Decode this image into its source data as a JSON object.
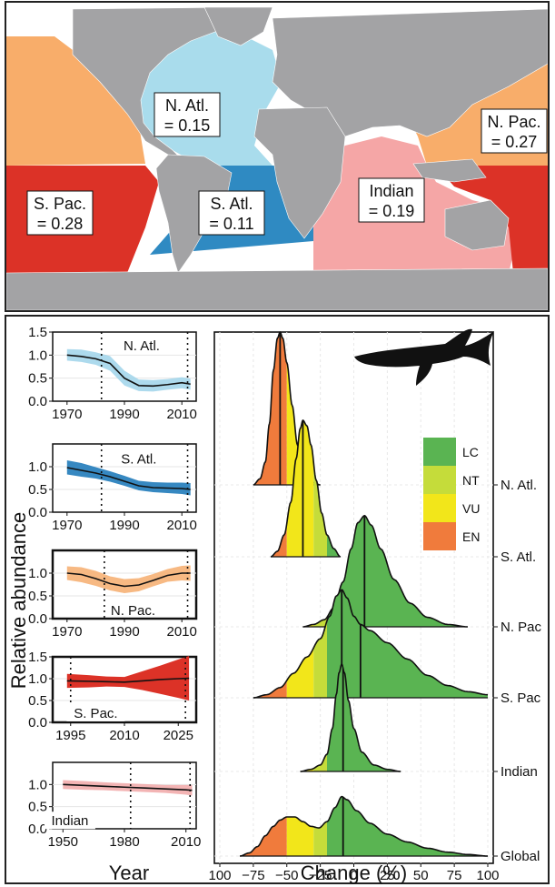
{
  "colors": {
    "land": "#a3a3a5",
    "n_atl": "#a9dcec",
    "s_atl": "#2f8ac2",
    "n_pac": "#f8ad6a",
    "s_pac": "#dc3227",
    "indian": "#f5a6a6",
    "lc": "#5ab452",
    "nt": "#c5dc3a",
    "vu": "#f2e61a",
    "en": "#f07b3c"
  },
  "map": {
    "labels": [
      {
        "id": "n_atl",
        "line1": "N. Atl.",
        "line2": "= 0.15"
      },
      {
        "id": "n_pac",
        "line1": "N. Pac.",
        "line2": "= 0.27"
      },
      {
        "id": "s_pac",
        "line1": "S. Pac.",
        "line2": "= 0.28"
      },
      {
        "id": "s_atl",
        "line1": "S. Atl.",
        "line2": "= 0.11"
      },
      {
        "id": "indian",
        "line1": "Indian",
        "line2": "= 0.19"
      }
    ]
  },
  "chart_data": [
    {
      "type": "line",
      "region": "N. Atl.",
      "xlim": [
        1965,
        2015
      ],
      "ylim": [
        0,
        1.5
      ],
      "xticks": [
        "1970",
        "1990",
        "2010"
      ],
      "yticks": [
        "0.0",
        "0.5",
        "1.0",
        "1.5"
      ],
      "vlines": [
        1982,
        2012
      ],
      "series": [
        {
          "x": [
            1970,
            1975,
            1980,
            1985,
            1990,
            1995,
            2000,
            2005,
            2010,
            2013
          ],
          "y": [
            1.0,
            0.97,
            0.92,
            0.82,
            0.5,
            0.34,
            0.33,
            0.36,
            0.4,
            0.37
          ],
          "lower": [
            0.88,
            0.85,
            0.79,
            0.66,
            0.34,
            0.22,
            0.21,
            0.25,
            0.28,
            0.25
          ],
          "upper": [
            1.13,
            1.12,
            1.06,
            0.98,
            0.66,
            0.47,
            0.46,
            0.48,
            0.52,
            0.49
          ]
        }
      ]
    },
    {
      "type": "line",
      "region": "S. Atl.",
      "xlim": [
        1965,
        2015
      ],
      "ylim": [
        0,
        1.5
      ],
      "xticks": [
        "1970",
        "1990",
        "2010"
      ],
      "yticks": [
        "0.0",
        "0.5",
        "1.0"
      ],
      "vlines": [
        1982,
        2012
      ],
      "series": [
        {
          "x": [
            1970,
            1975,
            1980,
            1985,
            1990,
            1995,
            2000,
            2005,
            2010,
            2013
          ],
          "y": [
            0.98,
            0.92,
            0.86,
            0.78,
            0.68,
            0.58,
            0.54,
            0.53,
            0.52,
            0.5
          ],
          "lower": [
            0.83,
            0.78,
            0.74,
            0.67,
            0.58,
            0.48,
            0.44,
            0.42,
            0.4,
            0.37
          ],
          "upper": [
            1.14,
            1.08,
            0.99,
            0.9,
            0.8,
            0.69,
            0.66,
            0.65,
            0.65,
            0.64
          ]
        }
      ]
    },
    {
      "type": "line",
      "region": "N. Pac.",
      "xlim": [
        1965,
        2015
      ],
      "ylim": [
        0,
        1.5
      ],
      "xticks": [
        "1970",
        "1990",
        "2010"
      ],
      "yticks": [
        "0.0",
        "0.5",
        "1.0"
      ],
      "vlines": [
        1983,
        2012
      ],
      "series": [
        {
          "x": [
            1970,
            1975,
            1980,
            1985,
            1990,
            1995,
            2000,
            2005,
            2010,
            2013
          ],
          "y": [
            1.0,
            0.97,
            0.88,
            0.77,
            0.71,
            0.74,
            0.84,
            0.95,
            1.0,
            1.0
          ],
          "lower": [
            0.85,
            0.8,
            0.72,
            0.62,
            0.56,
            0.6,
            0.71,
            0.81,
            0.84,
            0.83
          ],
          "upper": [
            1.15,
            1.13,
            1.05,
            0.93,
            0.87,
            0.89,
            0.98,
            1.09,
            1.16,
            1.17
          ]
        }
      ]
    },
    {
      "type": "line",
      "region": "S. Pac.",
      "xlim": [
        1990,
        2030
      ],
      "ylim": [
        0,
        1.5
      ],
      "xticks": [
        "1995",
        "2010",
        "2025"
      ],
      "yticks": [
        "0.0",
        "0.5",
        "1.0",
        "1.5"
      ],
      "vlines": [
        1995,
        2027
      ],
      "series": [
        {
          "x": [
            1994,
            2000,
            2005,
            2010,
            2015,
            2020,
            2025,
            2028
          ],
          "y": [
            0.95,
            0.94,
            0.93,
            0.92,
            0.95,
            0.98,
            1.0,
            1.01
          ],
          "lower": [
            0.79,
            0.8,
            0.82,
            0.81,
            0.74,
            0.65,
            0.56,
            0.5
          ],
          "upper": [
            1.11,
            1.08,
            1.05,
            1.04,
            1.17,
            1.3,
            1.44,
            1.52
          ]
        }
      ]
    },
    {
      "type": "line",
      "region": "Indian",
      "xlim": [
        1945,
        2015
      ],
      "ylim": [
        0,
        1.5
      ],
      "xticks": [
        "1950",
        "1980",
        "2010"
      ],
      "yticks": [
        "0.0",
        "0.5",
        "1.0"
      ],
      "vlines": [
        1983,
        2012
      ],
      "series": [
        {
          "x": [
            1950,
            1960,
            1970,
            1980,
            1990,
            2000,
            2010,
            2013
          ],
          "y": [
            1.0,
            0.98,
            0.96,
            0.94,
            0.92,
            0.9,
            0.88,
            0.87
          ],
          "lower": [
            0.9,
            0.88,
            0.87,
            0.85,
            0.83,
            0.81,
            0.77,
            0.75
          ],
          "upper": [
            1.1,
            1.08,
            1.05,
            1.03,
            1.01,
            0.99,
            0.99,
            0.99
          ]
        }
      ]
    },
    {
      "type": "area",
      "xlabel": "Change (%)",
      "xlim": [
        -100,
        100
      ],
      "xticks": [
        "100",
        "−75",
        "−50",
        "−25",
        "0",
        "25",
        "50",
        "75",
        "100"
      ],
      "thresholds": {
        "en": -50,
        "vu": -30,
        "nt": -20
      },
      "legend": [
        "LC",
        "NT",
        "VU",
        "EN"
      ],
      "series": [
        {
          "name": "N. Atl.",
          "median": -55,
          "points": [
            [
              -75,
              0
            ],
            [
              -70,
              0.04
            ],
            [
              -66,
              0.15
            ],
            [
              -63,
              0.4
            ],
            [
              -60,
              0.75
            ],
            [
              -57,
              0.96
            ],
            [
              -55,
              1.0
            ],
            [
              -53,
              0.96
            ],
            [
              -50,
              0.8
            ],
            [
              -46,
              0.52
            ],
            [
              -42,
              0.26
            ],
            [
              -38,
              0.1
            ],
            [
              -34,
              0.04
            ],
            [
              -30,
              0.015
            ],
            [
              -25,
              0
            ]
          ]
        },
        {
          "name": "S. Atl.",
          "median": -38,
          "points": [
            [
              -62,
              0
            ],
            [
              -57,
              0.04
            ],
            [
              -52,
              0.16
            ],
            [
              -47,
              0.4
            ],
            [
              -43,
              0.72
            ],
            [
              -40,
              0.94
            ],
            [
              -38,
              1.0
            ],
            [
              -35,
              0.96
            ],
            [
              -32,
              0.82
            ],
            [
              -28,
              0.56
            ],
            [
              -24,
              0.32
            ],
            [
              -20,
              0.16
            ],
            [
              -15,
              0.06
            ],
            [
              -10,
              0
            ]
          ]
        },
        {
          "name": "N. Pac",
          "median": 8,
          "points": [
            [
              -38,
              0
            ],
            [
              -30,
              0.02
            ],
            [
              -22,
              0.06
            ],
            [
              -15,
              0.16
            ],
            [
              -8,
              0.38
            ],
            [
              -2,
              0.66
            ],
            [
              3,
              0.88
            ],
            [
              8,
              0.94
            ],
            [
              13,
              0.86
            ],
            [
              20,
              0.66
            ],
            [
              30,
              0.4
            ],
            [
              42,
              0.2
            ],
            [
              55,
              0.08
            ],
            [
              70,
              0.02
            ],
            [
              85,
              0
            ]
          ]
        },
        {
          "name": "S. Pac",
          "median": 5,
          "mode": -9,
          "points": [
            [
              -75,
              0
            ],
            [
              -65,
              0.03
            ],
            [
              -55,
              0.1
            ],
            [
              -45,
              0.24
            ],
            [
              -35,
              0.4
            ],
            [
              -25,
              0.58
            ],
            [
              -18,
              0.8
            ],
            [
              -13,
              1.0
            ],
            [
              -9,
              1.06
            ],
            [
              -5,
              0.98
            ],
            [
              0,
              0.8
            ],
            [
              5,
              0.72
            ],
            [
              12,
              0.66
            ],
            [
              25,
              0.54
            ],
            [
              40,
              0.38
            ],
            [
              55,
              0.22
            ],
            [
              70,
              0.12
            ],
            [
              85,
              0.06
            ],
            [
              100,
              0.03
            ]
          ]
        },
        {
          "name": "Indian",
          "median": -8,
          "points": [
            [
              -40,
              0
            ],
            [
              -32,
              0.02
            ],
            [
              -25,
              0.06
            ],
            [
              -20,
              0.16
            ],
            [
              -16,
              0.4
            ],
            [
              -13,
              0.72
            ],
            [
              -11,
              0.92
            ],
            [
              -9,
              1.0
            ],
            [
              -7,
              0.92
            ],
            [
              -4,
              0.66
            ],
            [
              0,
              0.4
            ],
            [
              6,
              0.18
            ],
            [
              15,
              0.06
            ],
            [
              25,
              0.02
            ],
            [
              35,
              0
            ]
          ]
        },
        {
          "name": "Global",
          "median": -8,
          "points": [
            [
              -85,
              0
            ],
            [
              -78,
              0.04
            ],
            [
              -72,
              0.12
            ],
            [
              -66,
              0.26
            ],
            [
              -60,
              0.38
            ],
            [
              -55,
              0.46
            ],
            [
              -50,
              0.5
            ],
            [
              -44,
              0.5
            ],
            [
              -38,
              0.44
            ],
            [
              -32,
              0.38
            ],
            [
              -26,
              0.36
            ],
            [
              -20,
              0.44
            ],
            [
              -14,
              0.62
            ],
            [
              -9,
              0.76
            ],
            [
              -5,
              0.72
            ],
            [
              2,
              0.58
            ],
            [
              12,
              0.42
            ],
            [
              25,
              0.28
            ],
            [
              40,
              0.18
            ],
            [
              55,
              0.1
            ],
            [
              70,
              0.05
            ],
            [
              85,
              0.02
            ],
            [
              100,
              0
            ]
          ]
        }
      ]
    }
  ],
  "axis": {
    "ylabel": "Relative abundance",
    "xlabel_year": "Year"
  }
}
